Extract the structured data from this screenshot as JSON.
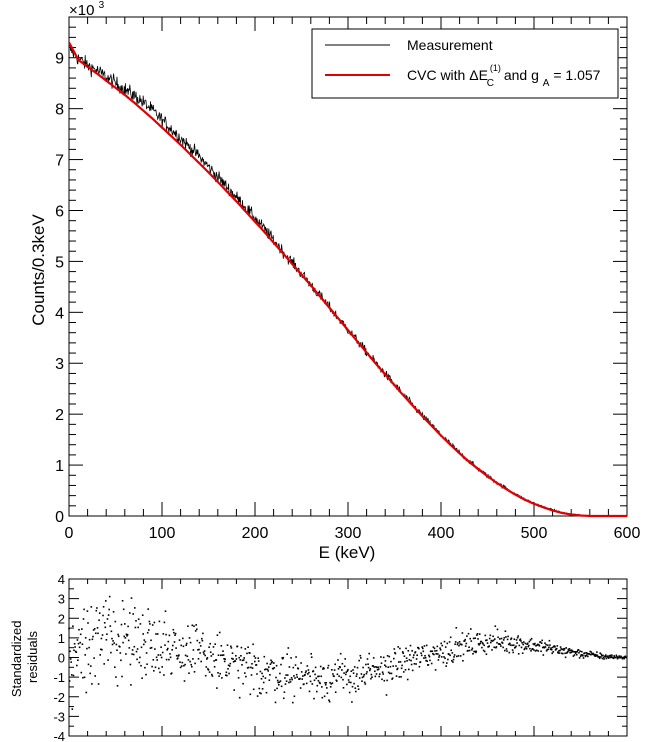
{
  "chart_data": [
    {
      "type": "line",
      "panel": "main",
      "xlabel": "E (keV)",
      "ylabel": "Counts/0.3keV",
      "xlim": [
        0,
        600
      ],
      "ylim": [
        0,
        9.8
      ],
      "x_ticks": [
        0,
        100,
        200,
        300,
        400,
        500,
        600
      ],
      "y_ticks": [
        0,
        1,
        2,
        3,
        4,
        5,
        6,
        7,
        8,
        9
      ],
      "y_multiplier_prefix": "×10",
      "y_multiplier_exponent": "3",
      "grid": false,
      "legend_position": "top-right",
      "series": [
        {
          "name": "Measurement",
          "style": "noisy-line",
          "color": "#000000",
          "x": [
            0,
            10,
            20,
            30,
            40,
            50,
            60,
            70,
            80,
            90,
            100,
            110,
            120,
            130,
            140,
            150,
            160,
            170,
            180,
            190,
            200,
            210,
            220,
            230,
            240,
            250,
            260,
            270,
            280,
            290,
            300,
            310,
            320,
            330,
            340,
            350,
            360,
            370,
            380,
            390,
            400,
            410,
            420,
            430,
            440,
            450,
            460,
            470,
            480,
            490,
            500,
            510,
            520,
            530,
            540,
            550,
            560,
            570,
            580,
            590,
            600
          ],
          "y": [
            9.2,
            8.98,
            8.85,
            8.75,
            8.62,
            8.5,
            8.38,
            8.26,
            8.12,
            7.96,
            7.78,
            7.6,
            7.42,
            7.24,
            7.06,
            6.86,
            6.66,
            6.46,
            6.26,
            6.06,
            5.85,
            5.64,
            5.42,
            5.2,
            4.98,
            4.76,
            4.54,
            4.32,
            4.1,
            3.88,
            3.66,
            3.44,
            3.22,
            3.0,
            2.79,
            2.58,
            2.37,
            2.17,
            1.97,
            1.78,
            1.59,
            1.41,
            1.24,
            1.08,
            0.93,
            0.79,
            0.66,
            0.54,
            0.43,
            0.33,
            0.25,
            0.18,
            0.12,
            0.07,
            0.04,
            0.02,
            0.01,
            0.0,
            0.0,
            0.0,
            0.0
          ]
        },
        {
          "name": "CVC with ΔE",
          "label_sub": "C",
          "label_sup": "(1)",
          "label_mid": " and g",
          "label_sub2": "A",
          "label_tail": " = 1.057",
          "style": "smooth-line",
          "color": "#e00000",
          "x": [
            0,
            10,
            20,
            30,
            40,
            50,
            60,
            70,
            80,
            90,
            100,
            110,
            120,
            130,
            140,
            150,
            160,
            170,
            180,
            190,
            200,
            210,
            220,
            230,
            240,
            250,
            260,
            270,
            280,
            290,
            300,
            310,
            320,
            330,
            340,
            350,
            360,
            370,
            380,
            390,
            400,
            410,
            420,
            430,
            440,
            450,
            460,
            470,
            480,
            490,
            500,
            510,
            520,
            530,
            540,
            550,
            560,
            570,
            580,
            590,
            600
          ],
          "y": [
            9.3,
            8.96,
            8.82,
            8.69,
            8.55,
            8.41,
            8.27,
            8.12,
            7.96,
            7.8,
            7.63,
            7.46,
            7.29,
            7.11,
            6.93,
            6.75,
            6.56,
            6.37,
            6.18,
            5.98,
            5.78,
            5.58,
            5.37,
            5.16,
            4.95,
            4.74,
            4.53,
            4.31,
            4.09,
            3.87,
            3.65,
            3.43,
            3.21,
            2.99,
            2.78,
            2.57,
            2.36,
            2.16,
            1.96,
            1.77,
            1.58,
            1.4,
            1.23,
            1.07,
            0.92,
            0.78,
            0.65,
            0.53,
            0.42,
            0.32,
            0.24,
            0.17,
            0.11,
            0.06,
            0.03,
            0.01,
            0.0,
            0.0,
            0.0,
            0.0,
            0.0
          ]
        }
      ]
    },
    {
      "type": "scatter",
      "panel": "residuals",
      "ylabel": [
        "Standardized",
        "residuals"
      ],
      "xlim": [
        0,
        600
      ],
      "ylim": [
        -4,
        4
      ],
      "y_ticks": [
        -4,
        -3,
        -2,
        -1,
        0,
        1,
        2,
        3,
        4
      ],
      "grid": false,
      "series": [
        {
          "style": "dots",
          "color": "#000000",
          "trend_x": [
            0,
            25,
            50,
            75,
            100,
            125,
            150,
            175,
            200,
            225,
            250,
            275,
            300,
            325,
            350,
            375,
            400,
            425,
            450,
            475,
            500,
            525,
            550,
            575,
            600
          ],
          "trend_y": [
            0.2,
            0.7,
            1.0,
            0.9,
            0.7,
            0.3,
            0.0,
            -0.4,
            -0.7,
            -0.8,
            -0.9,
            -1.0,
            -1.0,
            -0.8,
            -0.4,
            0.0,
            0.3,
            0.6,
            0.8,
            0.8,
            0.6,
            0.4,
            0.2,
            0.05,
            0.0
          ],
          "spread_x": [
            0,
            50,
            100,
            150,
            200,
            250,
            300,
            350,
            400,
            450,
            500,
            550,
            600
          ],
          "spread_y": [
            1.6,
            1.3,
            1.1,
            1.0,
            0.85,
            0.8,
            0.7,
            0.6,
            0.5,
            0.4,
            0.3,
            0.15,
            0.05
          ]
        }
      ]
    }
  ]
}
